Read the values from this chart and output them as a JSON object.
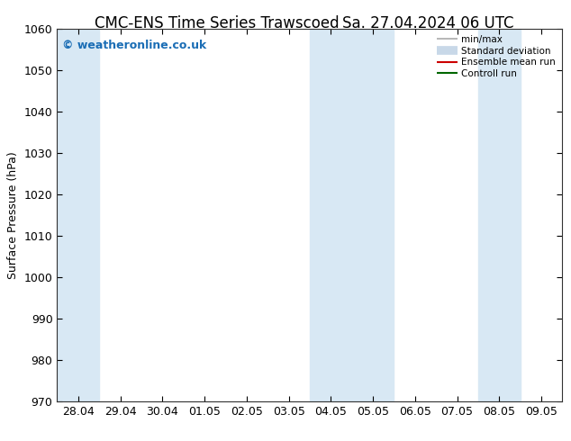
{
  "title": "CMC-ENS Time Series Trawscoed",
  "title2": "Sa. 27.04.2024 06 UTC",
  "ylabel": "Surface Pressure (hPa)",
  "ylim": [
    970,
    1060
  ],
  "yticks": [
    970,
    980,
    990,
    1000,
    1010,
    1020,
    1030,
    1040,
    1050,
    1060
  ],
  "x_labels": [
    "28.04",
    "29.04",
    "30.04",
    "01.05",
    "02.05",
    "03.05",
    "04.05",
    "05.05",
    "06.05",
    "07.05",
    "08.05",
    "09.05"
  ],
  "x_values": [
    0,
    1,
    2,
    3,
    4,
    5,
    6,
    7,
    8,
    9,
    10,
    11
  ],
  "shaded_bands": [
    {
      "xmin": 0,
      "xmax": 1,
      "color": "#d8e8f4"
    },
    {
      "xmin": 6,
      "xmax": 8,
      "color": "#d8e8f4"
    },
    {
      "xmin": 10,
      "xmax": 11,
      "color": "#d8e8f4"
    }
  ],
  "watermark": "© weatheronline.co.uk",
  "watermark_color": "#1a6db5",
  "legend_items": [
    {
      "label": "min/max",
      "color": "#aaaaaa",
      "lw": 1.2,
      "type": "line"
    },
    {
      "label": "Standard deviation",
      "color": "#c8d8e8",
      "lw": 7,
      "type": "bar"
    },
    {
      "label": "Ensemble mean run",
      "color": "#cc0000",
      "lw": 1.5,
      "type": "line"
    },
    {
      "label": "Controll run",
      "color": "#006600",
      "lw": 1.5,
      "type": "line"
    }
  ],
  "background_color": "#ffffff",
  "plot_bg_color": "#ffffff",
  "border_color": "#333333",
  "title_fontsize": 12,
  "axis_fontsize": 9,
  "tick_fontsize": 9
}
